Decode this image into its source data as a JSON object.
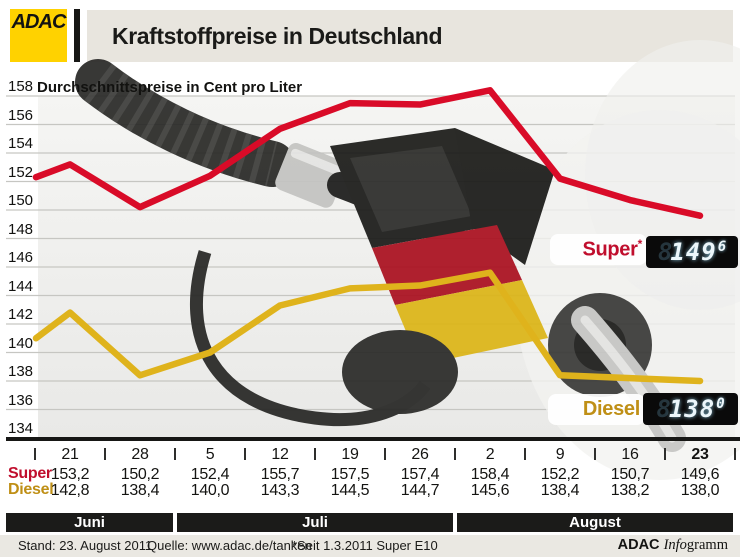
{
  "header": {
    "logo_text": "ADAC",
    "title": "Kraftstoffpreise in Deutschland"
  },
  "chart": {
    "subtitle": "Durchschnittspreise in Cent pro Liter",
    "y_ticks": [
      158,
      156,
      154,
      152,
      150,
      148,
      146,
      144,
      142,
      140,
      138,
      136,
      134
    ]
  },
  "chart_data": {
    "type": "line",
    "title": "Kraftstoffpreise in Deutschland",
    "ylabel": "Durchschnittspreise in Cent pro Liter",
    "ylim": [
      134,
      158
    ],
    "grid": "horizontal",
    "x_dates": [
      "21",
      "28",
      "5",
      "12",
      "19",
      "26",
      "2",
      "9",
      "16",
      "23"
    ],
    "x_months": [
      "Juni",
      "Juni",
      "Juli",
      "Juli",
      "Juli",
      "Juli",
      "August",
      "August",
      "August",
      "August"
    ],
    "series": [
      {
        "name": "Super",
        "color": "#d90b28",
        "values": [
          153.2,
          150.2,
          152.4,
          155.7,
          157.5,
          157.4,
          158.4,
          152.2,
          150.7,
          149.6
        ],
        "lead_in": 152.3
      },
      {
        "name": "Diesel",
        "color": "#dfb31c",
        "values": [
          142.8,
          138.4,
          140.0,
          143.3,
          144.5,
          144.7,
          145.6,
          138.4,
          138.2,
          138.0
        ],
        "lead_in": 141.0
      }
    ],
    "legend_position": "inline-right"
  },
  "series_tags": {
    "super": {
      "label": "Super",
      "suffix": "*",
      "display_ghost": "8",
      "display_main": "149",
      "display_sup": "6"
    },
    "diesel": {
      "label": "Diesel",
      "suffix": "",
      "display_ghost": "8",
      "display_main": "138",
      "display_sup": "0"
    }
  },
  "table": {
    "row_labels": [
      "Super",
      "Diesel"
    ],
    "dates": [
      {
        "label": "21"
      },
      {
        "label": "28"
      },
      {
        "label": "5"
      },
      {
        "label": "12"
      },
      {
        "label": "19"
      },
      {
        "label": "26"
      },
      {
        "label": "2"
      },
      {
        "label": "9"
      },
      {
        "label": "16"
      },
      {
        "label": "23",
        "bold": true
      }
    ],
    "super_values": [
      "153,2",
      "150,2",
      "152,4",
      "155,7",
      "157,5",
      "157,4",
      "158,4",
      "152,2",
      "150,7",
      "149,6"
    ],
    "diesel_values": [
      "142,8",
      "138,4",
      "140,0",
      "143,3",
      "144,5",
      "144,7",
      "145,6",
      "138,4",
      "138,2",
      "138,0"
    ],
    "months": [
      {
        "label": "Juni",
        "start_col": 0,
        "end_col": 1
      },
      {
        "label": "Juli",
        "start_col": 2,
        "end_col": 5
      },
      {
        "label": "August",
        "start_col": 6,
        "end_col": 9
      }
    ]
  },
  "footer": {
    "stand": "Stand: 23. August 2011",
    "quelle": "Quelle: www.adac.de/tanken",
    "note": "*Seit 1.3.2011 Super E10",
    "credit_bold": "ADAC",
    "credit_italic": "Info",
    "credit_rest": "gramm"
  },
  "colors": {
    "adac_yellow": "#ffd200",
    "header_bar": "#e8e5de",
    "super_line": "#d90b28",
    "diesel_line": "#dfb31c",
    "super_text": "#c00e2d",
    "diesel_text": "#bf8f16",
    "month_bar": "#1b1b19",
    "footer_bg": "#eae8e2",
    "grid_line": "#c6c6c2",
    "lcd_bg": "#0a0a0a",
    "lcd_digit": "#ecf6fa"
  }
}
